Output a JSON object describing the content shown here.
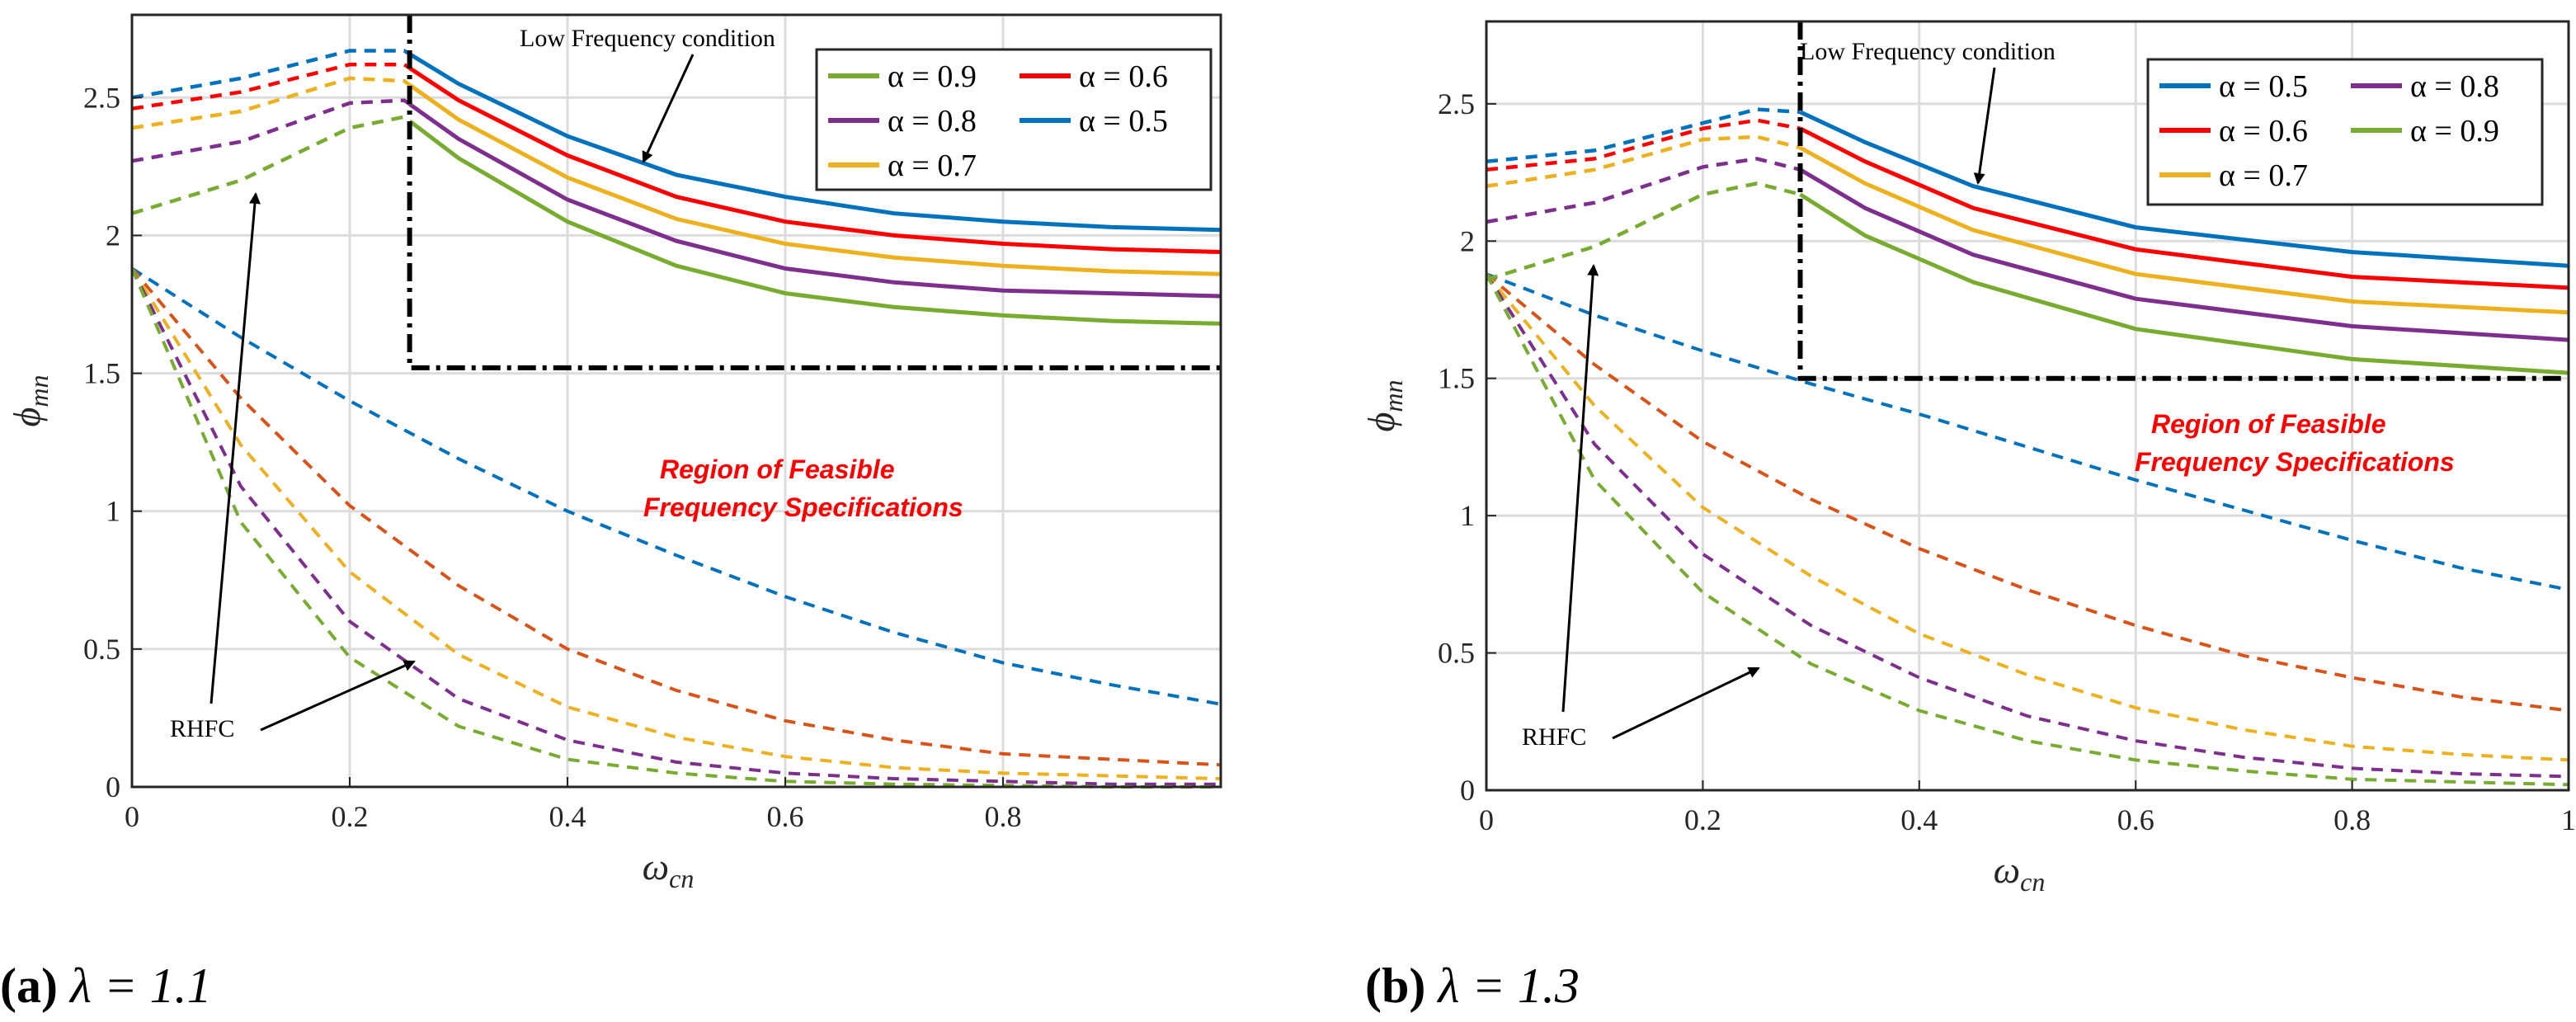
{
  "colors": {
    "0.5": "#0072bd",
    "0.6": "#ff0000",
    "0.7": "#edb120",
    "0.8": "#7e2f8e",
    "0.9": "#77ac30",
    "0.5_rhfc": "#0072bd",
    "0.6_rhfc": "#d95319"
  },
  "chart_data": [
    {
      "type": "line",
      "panel": "a",
      "caption_label": "(a)",
      "caption_param": "λ = 1.1",
      "xlabel": "ω",
      "xlabel_sub": "cn",
      "ylabel": "ϕ",
      "ylabel_sub": "mn",
      "xlim": [
        0,
        1.0
      ],
      "ylim": [
        0,
        2.8
      ],
      "xticks": [
        0,
        0.2,
        0.4,
        0.6,
        0.8
      ],
      "xtick_labels": [
        "0",
        "0.2",
        "0.4",
        "0.6",
        "0.8"
      ],
      "yticks": [
        0,
        0.5,
        1,
        1.5,
        2,
        2.5
      ],
      "ytick_labels": [
        "0",
        "0.5",
        "1",
        "1.5",
        "2",
        "2.5"
      ],
      "grid": true,
      "legend_position": "top-right",
      "legend": [
        [
          "α = 0.9",
          "α = 0.6"
        ],
        [
          "α = 0.8",
          "α = 0.5"
        ],
        [
          "α = 0.7"
        ]
      ],
      "legend_keys": [
        [
          "0.9",
          "0.6"
        ],
        [
          "0.8",
          "0.5"
        ],
        [
          "0.7"
        ]
      ],
      "annotations": {
        "low_freq": "Low Frequency condition",
        "rhfc": "RHFC",
        "region_line1": "Region of Feasible",
        "region_line2": "Frequency Specifications"
      },
      "boundary": {
        "x_switch": 0.255,
        "y_level": 1.52
      },
      "upper_series": [
        {
          "alpha": "0.5",
          "values": [
            [
              0,
              2.5
            ],
            [
              0.1,
              2.57
            ],
            [
              0.2,
              2.67
            ],
            [
              0.25,
              2.67
            ],
            [
              0.3,
              2.55
            ],
            [
              0.4,
              2.36
            ],
            [
              0.5,
              2.22
            ],
            [
              0.6,
              2.14
            ],
            [
              0.7,
              2.08
            ],
            [
              0.8,
              2.05
            ],
            [
              0.9,
              2.03
            ],
            [
              1.0,
              2.02
            ]
          ]
        },
        {
          "alpha": "0.6",
          "values": [
            [
              0,
              2.46
            ],
            [
              0.1,
              2.52
            ],
            [
              0.2,
              2.62
            ],
            [
              0.25,
              2.62
            ],
            [
              0.3,
              2.49
            ],
            [
              0.4,
              2.29
            ],
            [
              0.5,
              2.14
            ],
            [
              0.6,
              2.05
            ],
            [
              0.7,
              2.0
            ],
            [
              0.8,
              1.97
            ],
            [
              0.9,
              1.95
            ],
            [
              1.0,
              1.94
            ]
          ]
        },
        {
          "alpha": "0.7",
          "values": [
            [
              0,
              2.39
            ],
            [
              0.1,
              2.45
            ],
            [
              0.2,
              2.57
            ],
            [
              0.25,
              2.56
            ],
            [
              0.3,
              2.42
            ],
            [
              0.4,
              2.21
            ],
            [
              0.5,
              2.06
            ],
            [
              0.6,
              1.97
            ],
            [
              0.7,
              1.92
            ],
            [
              0.8,
              1.89
            ],
            [
              0.9,
              1.87
            ],
            [
              1.0,
              1.86
            ]
          ]
        },
        {
          "alpha": "0.8",
          "values": [
            [
              0,
              2.27
            ],
            [
              0.1,
              2.34
            ],
            [
              0.2,
              2.48
            ],
            [
              0.25,
              2.49
            ],
            [
              0.3,
              2.35
            ],
            [
              0.4,
              2.13
            ],
            [
              0.5,
              1.98
            ],
            [
              0.6,
              1.88
            ],
            [
              0.7,
              1.83
            ],
            [
              0.8,
              1.8
            ],
            [
              0.9,
              1.79
            ],
            [
              1.0,
              1.78
            ]
          ]
        },
        {
          "alpha": "0.9",
          "values": [
            [
              0,
              2.08
            ],
            [
              0.1,
              2.2
            ],
            [
              0.2,
              2.39
            ],
            [
              0.25,
              2.43
            ],
            [
              0.3,
              2.28
            ],
            [
              0.4,
              2.05
            ],
            [
              0.5,
              1.89
            ],
            [
              0.6,
              1.79
            ],
            [
              0.7,
              1.74
            ],
            [
              0.8,
              1.71
            ],
            [
              0.9,
              1.69
            ],
            [
              1.0,
              1.68
            ]
          ]
        }
      ],
      "rhfc_series": [
        {
          "alpha": "0.5",
          "values": [
            [
              0,
              1.88
            ],
            [
              0.1,
              1.63
            ],
            [
              0.2,
              1.4
            ],
            [
              0.3,
              1.19
            ],
            [
              0.4,
              1.0
            ],
            [
              0.5,
              0.84
            ],
            [
              0.6,
              0.69
            ],
            [
              0.7,
              0.56
            ],
            [
              0.8,
              0.45
            ],
            [
              0.9,
              0.37
            ],
            [
              1.0,
              0.3
            ]
          ]
        },
        {
          "alpha": "0.6",
          "values": [
            [
              0,
              1.88
            ],
            [
              0.1,
              1.41
            ],
            [
              0.2,
              1.02
            ],
            [
              0.3,
              0.73
            ],
            [
              0.4,
              0.5
            ],
            [
              0.5,
              0.35
            ],
            [
              0.6,
              0.24
            ],
            [
              0.7,
              0.17
            ],
            [
              0.8,
              0.12
            ],
            [
              0.9,
              0.1
            ],
            [
              1.0,
              0.08
            ]
          ]
        },
        {
          "alpha": "0.7",
          "values": [
            [
              0,
              1.88
            ],
            [
              0.1,
              1.24
            ],
            [
              0.2,
              0.78
            ],
            [
              0.3,
              0.48
            ],
            [
              0.4,
              0.29
            ],
            [
              0.5,
              0.18
            ],
            [
              0.6,
              0.11
            ],
            [
              0.7,
              0.07
            ],
            [
              0.8,
              0.05
            ],
            [
              0.9,
              0.04
            ],
            [
              1.0,
              0.03
            ]
          ]
        },
        {
          "alpha": "0.8",
          "values": [
            [
              0,
              1.88
            ],
            [
              0.1,
              1.09
            ],
            [
              0.2,
              0.6
            ],
            [
              0.3,
              0.32
            ],
            [
              0.4,
              0.17
            ],
            [
              0.5,
              0.09
            ],
            [
              0.6,
              0.05
            ],
            [
              0.7,
              0.03
            ],
            [
              0.8,
              0.02
            ],
            [
              0.9,
              0.01
            ],
            [
              1.0,
              0.01
            ]
          ]
        },
        {
          "alpha": "0.9",
          "values": [
            [
              0,
              1.88
            ],
            [
              0.1,
              0.96
            ],
            [
              0.2,
              0.47
            ],
            [
              0.3,
              0.22
            ],
            [
              0.4,
              0.1
            ],
            [
              0.5,
              0.05
            ],
            [
              0.6,
              0.02
            ],
            [
              0.7,
              0.01
            ],
            [
              0.8,
              0.005
            ],
            [
              0.9,
              0.0
            ],
            [
              1.0,
              0.0
            ]
          ]
        }
      ]
    },
    {
      "type": "line",
      "panel": "b",
      "caption_label": "(b)",
      "caption_param": "λ = 1.3",
      "xlabel": "ω",
      "xlabel_sub": "cn",
      "ylabel": "ϕ",
      "ylabel_sub": "mn",
      "xlim": [
        0,
        1.0
      ],
      "ylim": [
        0,
        2.8
      ],
      "xticks": [
        0,
        0.2,
        0.4,
        0.6,
        0.8,
        1.0
      ],
      "xtick_labels": [
        "0",
        "0.2",
        "0.4",
        "0.6",
        "0.8",
        "1"
      ],
      "yticks": [
        0,
        0.5,
        1,
        1.5,
        2,
        2.5
      ],
      "ytick_labels": [
        "0",
        "0.5",
        "1",
        "1.5",
        "2",
        "2.5"
      ],
      "grid": true,
      "legend_position": "top-right",
      "legend": [
        [
          "α = 0.5",
          "α = 0.8"
        ],
        [
          "α = 0.6",
          "α = 0.9"
        ],
        [
          "α = 0.7"
        ]
      ],
      "legend_keys": [
        [
          "0.5",
          "0.8"
        ],
        [
          "0.6",
          "0.9"
        ],
        [
          "0.7"
        ]
      ],
      "annotations": {
        "low_freq": "Low Frequency condition",
        "rhfc": "RHFC",
        "region_line1": "Region of Feasible",
        "region_line2": "Frequency Specifications"
      },
      "boundary": {
        "x_switch": 0.29,
        "y_level": 1.5
      },
      "upper_series": [
        {
          "alpha": "0.5",
          "values": [
            [
              0,
              2.29
            ],
            [
              0.1,
              2.33
            ],
            [
              0.2,
              2.43
            ],
            [
              0.25,
              2.48
            ],
            [
              0.29,
              2.47
            ],
            [
              0.35,
              2.36
            ],
            [
              0.45,
              2.2
            ],
            [
              0.6,
              2.05
            ],
            [
              0.8,
              1.96
            ],
            [
              1.0,
              1.91
            ]
          ]
        },
        {
          "alpha": "0.6",
          "values": [
            [
              0,
              2.26
            ],
            [
              0.1,
              2.3
            ],
            [
              0.2,
              2.41
            ],
            [
              0.25,
              2.44
            ],
            [
              0.29,
              2.41
            ],
            [
              0.35,
              2.29
            ],
            [
              0.45,
              2.12
            ],
            [
              0.6,
              1.97
            ],
            [
              0.8,
              1.87
            ],
            [
              1.0,
              1.83
            ]
          ]
        },
        {
          "alpha": "0.7",
          "values": [
            [
              0,
              2.2
            ],
            [
              0.1,
              2.26
            ],
            [
              0.2,
              2.37
            ],
            [
              0.25,
              2.38
            ],
            [
              0.29,
              2.34
            ],
            [
              0.35,
              2.21
            ],
            [
              0.45,
              2.04
            ],
            [
              0.6,
              1.88
            ],
            [
              0.8,
              1.78
            ],
            [
              1.0,
              1.74
            ]
          ]
        },
        {
          "alpha": "0.8",
          "values": [
            [
              0,
              2.07
            ],
            [
              0.1,
              2.14
            ],
            [
              0.2,
              2.27
            ],
            [
              0.25,
              2.3
            ],
            [
              0.29,
              2.26
            ],
            [
              0.35,
              2.12
            ],
            [
              0.45,
              1.95
            ],
            [
              0.6,
              1.79
            ],
            [
              0.8,
              1.69
            ],
            [
              1.0,
              1.64
            ]
          ]
        },
        {
          "alpha": "0.9",
          "values": [
            [
              0,
              1.86
            ],
            [
              0.1,
              1.98
            ],
            [
              0.2,
              2.17
            ],
            [
              0.25,
              2.21
            ],
            [
              0.29,
              2.17
            ],
            [
              0.35,
              2.02
            ],
            [
              0.45,
              1.85
            ],
            [
              0.6,
              1.68
            ],
            [
              0.8,
              1.57
            ],
            [
              1.0,
              1.52
            ]
          ]
        }
      ],
      "rhfc_series": [
        {
          "alpha": "0.5",
          "values": [
            [
              0,
              1.88
            ],
            [
              0.1,
              1.73
            ],
            [
              0.2,
              1.6
            ],
            [
              0.3,
              1.48
            ],
            [
              0.4,
              1.37
            ],
            [
              0.5,
              1.25
            ],
            [
              0.6,
              1.13
            ],
            [
              0.7,
              1.02
            ],
            [
              0.8,
              0.91
            ],
            [
              0.9,
              0.81
            ],
            [
              1.0,
              0.73
            ]
          ]
        },
        {
          "alpha": "0.6",
          "values": [
            [
              0,
              1.88
            ],
            [
              0.1,
              1.55
            ],
            [
              0.2,
              1.27
            ],
            [
              0.3,
              1.06
            ],
            [
              0.4,
              0.88
            ],
            [
              0.5,
              0.73
            ],
            [
              0.6,
              0.6
            ],
            [
              0.7,
              0.49
            ],
            [
              0.8,
              0.41
            ],
            [
              0.9,
              0.34
            ],
            [
              1.0,
              0.29
            ]
          ]
        },
        {
          "alpha": "0.7",
          "values": [
            [
              0,
              1.88
            ],
            [
              0.1,
              1.4
            ],
            [
              0.2,
              1.03
            ],
            [
              0.3,
              0.78
            ],
            [
              0.4,
              0.57
            ],
            [
              0.5,
              0.42
            ],
            [
              0.6,
              0.3
            ],
            [
              0.7,
              0.22
            ],
            [
              0.8,
              0.16
            ],
            [
              0.9,
              0.13
            ],
            [
              1.0,
              0.11
            ]
          ]
        },
        {
          "alpha": "0.8",
          "values": [
            [
              0,
              1.88
            ],
            [
              0.1,
              1.26
            ],
            [
              0.2,
              0.86
            ],
            [
              0.3,
              0.6
            ],
            [
              0.4,
              0.41
            ],
            [
              0.5,
              0.27
            ],
            [
              0.6,
              0.18
            ],
            [
              0.7,
              0.12
            ],
            [
              0.8,
              0.08
            ],
            [
              0.9,
              0.06
            ],
            [
              1.0,
              0.05
            ]
          ]
        },
        {
          "alpha": "0.9",
          "values": [
            [
              0,
              1.88
            ],
            [
              0.1,
              1.13
            ],
            [
              0.2,
              0.72
            ],
            [
              0.3,
              0.46
            ],
            [
              0.4,
              0.29
            ],
            [
              0.5,
              0.18
            ],
            [
              0.6,
              0.11
            ],
            [
              0.7,
              0.07
            ],
            [
              0.8,
              0.04
            ],
            [
              0.9,
              0.03
            ],
            [
              1.0,
              0.02
            ]
          ]
        }
      ]
    }
  ]
}
